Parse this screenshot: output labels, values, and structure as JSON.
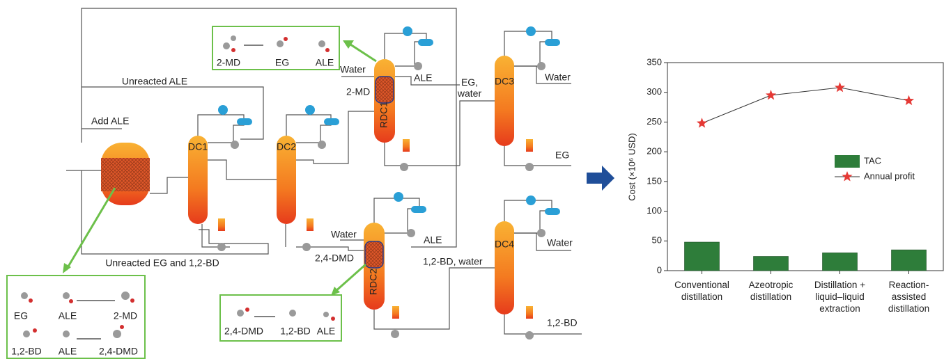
{
  "diagram": {
    "flow_labels": [
      "Unreacted ALE",
      "Add ALE",
      "Unreacted EG and 1,2-BD",
      "Water",
      "2-MD",
      "ALE",
      "EG, water",
      "Water",
      "EG",
      "Water",
      "2,4-DMD",
      "ALE",
      "Water",
      "1,2-BD, water",
      "1,2-BD"
    ],
    "units": [
      "DC1",
      "DC2",
      "RDC1",
      "DC3",
      "RDC2",
      "DC4"
    ],
    "reaction_boxes": [
      [
        "2-MD",
        "EG",
        "ALE"
      ],
      [
        "EG",
        "ALE",
        "2-MD",
        "1,2-BD",
        "ALE",
        "2,4-DMD"
      ],
      [
        "2,4-DMD",
        "1,2-BD",
        "ALE"
      ]
    ]
  },
  "chart_data": {
    "type": "bar_line",
    "y_label": "Cost (×10⁶ USD)",
    "categories": [
      "Conventional distillation",
      "Azeotropic distillation",
      "Distillation + liquid–liquid extraction",
      "Reaction-assisted distillation"
    ],
    "series": [
      {
        "name": "TAC",
        "type": "bar",
        "color": "#2e7d3a",
        "values": [
          48,
          24,
          30,
          35
        ]
      },
      {
        "name": "Annual profit",
        "type": "line",
        "color": "#e53935",
        "values": [
          248,
          295,
          308,
          286
        ]
      }
    ],
    "ylim": [
      0,
      350
    ],
    "yticks": [
      0,
      50,
      100,
      150,
      200,
      250,
      300,
      350
    ]
  }
}
